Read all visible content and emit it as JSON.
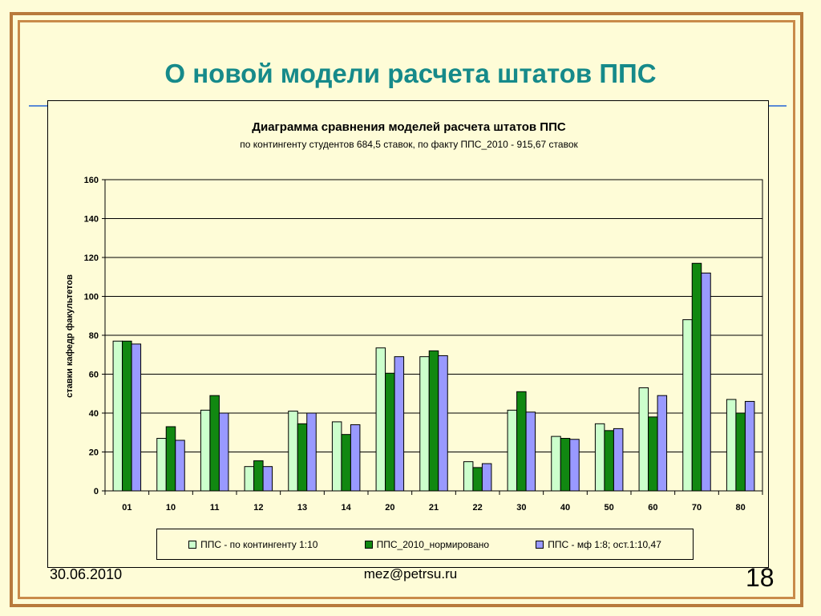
{
  "slide": {
    "title": "О новой модели расчета штатов ППС",
    "footer_date": "30.06.2010",
    "footer_email": "mez@petrsu.ru",
    "page_number": "18"
  },
  "colors": {
    "frame": "#b87a3c",
    "background": "#fefcd7",
    "title": "#168a8a",
    "series_1": "#ccffcc",
    "series_2": "#118811",
    "series_3": "#9999ff"
  },
  "chart_data": {
    "type": "bar",
    "title": "Диаграмма сравнения моделей расчета штатов ППС",
    "subtitle": "по контингенту студентов 684,5 ставок, по факту ППС_2010 - 915,67 ставок",
    "xlabel": "",
    "ylabel": "ставки кафедр факультетов",
    "ylim": [
      0,
      160
    ],
    "yticks": [
      0,
      20,
      40,
      60,
      80,
      100,
      120,
      140,
      160
    ],
    "grid": true,
    "legend_position": "bottom",
    "categories": [
      "01",
      "10",
      "11",
      "12",
      "13",
      "14",
      "20",
      "21",
      "22",
      "30",
      "40",
      "50",
      "60",
      "70",
      "80"
    ],
    "series": [
      {
        "name": "ППС - по контингенту 1:10",
        "color": "#ccffcc",
        "values": [
          77,
          27,
          41.5,
          12.5,
          41,
          35.5,
          73.5,
          69,
          15,
          41.5,
          28,
          34.5,
          53,
          88,
          47
        ]
      },
      {
        "name": "ППС_2010_нормировано",
        "color": "#118811",
        "values": [
          77,
          33,
          49,
          15.5,
          34.5,
          29,
          60.5,
          72,
          12,
          51,
          27,
          31,
          38,
          117,
          40
        ]
      },
      {
        "name": "ППС - мф 1:8; ост.1:10,47",
        "color": "#9999ff",
        "values": [
          75.5,
          26,
          40,
          12.5,
          40,
          34,
          69,
          69.5,
          14,
          40.5,
          26.5,
          32,
          49,
          112,
          46
        ]
      }
    ]
  }
}
